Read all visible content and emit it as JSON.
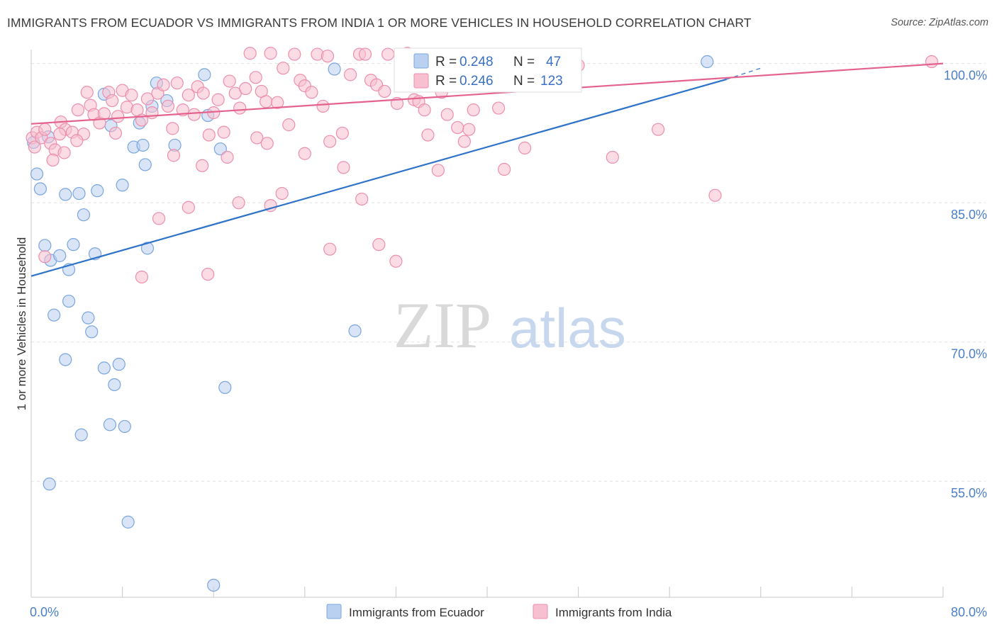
{
  "header": {
    "title": "IMMIGRANTS FROM ECUADOR VS IMMIGRANTS FROM INDIA 1 OR MORE VEHICLES IN HOUSEHOLD CORRELATION CHART",
    "source": "Source: ZipAtlas.com"
  },
  "watermark": {
    "zip": "ZIP",
    "atlas": "atlas"
  },
  "colors": {
    "ecuador_fill": "#b9d0f0",
    "ecuador_stroke": "#7aa5de",
    "ecuador_line": "#2f73c9",
    "india_fill": "#f7bfd0",
    "india_stroke": "#ec8fac",
    "india_line": "#e4638e",
    "axis_label": "#4a7fc8",
    "grid": "#e3e3e3"
  },
  "legend_box": {
    "r_label": "R =",
    "n_label": "N =",
    "rows": [
      {
        "r": "0.248",
        "n": "47"
      },
      {
        "r": "0.246",
        "n": "123"
      }
    ]
  },
  "chart_data": {
    "type": "scatter",
    "title": "IMMIGRANTS FROM ECUADOR VS IMMIGRANTS FROM INDIA 1 OR MORE VEHICLES IN HOUSEHOLD CORRELATION CHART",
    "xlabel": "",
    "ylabel": "1 or more Vehicles in Household",
    "xlim": [
      0,
      80
    ],
    "ylim": [
      42.5,
      101.5
    ],
    "x_tick_labels": [
      "0.0%",
      "80.0%"
    ],
    "y_ticks": [
      100,
      85,
      70,
      55
    ],
    "y_tick_labels": [
      "100.0%",
      "85.0%",
      "70.0%",
      "55.0%"
    ],
    "legend_position": "bottom-center",
    "series": [
      {
        "name": "Immigrants from Ecuador",
        "R": 0.248,
        "N": 47,
        "trend": {
          "x": [
            0,
            61
          ],
          "y": [
            77.1,
            98.3
          ],
          "dashed_to": {
            "x": 64,
            "y": 99.5
          }
        },
        "points": [
          [
            0.2,
            91.5
          ],
          [
            0.5,
            88.1
          ],
          [
            0.8,
            86.5
          ],
          [
            1.2,
            80.4
          ],
          [
            1.7,
            78.8
          ],
          [
            2.5,
            79.3
          ],
          [
            3.0,
            85.9
          ],
          [
            2.0,
            72.9
          ],
          [
            3.3,
            77.8
          ],
          [
            3.3,
            74.4
          ],
          [
            3.0,
            68.1
          ],
          [
            4.2,
            86.0
          ],
          [
            4.6,
            83.7
          ],
          [
            3.7,
            80.5
          ],
          [
            5.6,
            79.5
          ],
          [
            5.0,
            72.6
          ],
          [
            5.3,
            71.1
          ],
          [
            5.8,
            86.3
          ],
          [
            6.4,
            96.7
          ],
          [
            7.0,
            93.3
          ],
          [
            6.4,
            67.2
          ],
          [
            7.3,
            65.4
          ],
          [
            7.7,
            67.6
          ],
          [
            6.9,
            61.1
          ],
          [
            8.0,
            86.9
          ],
          [
            8.2,
            60.9
          ],
          [
            9.0,
            91.0
          ],
          [
            9.5,
            93.6
          ],
          [
            9.8,
            91.2
          ],
          [
            10.0,
            89.1
          ],
          [
            10.2,
            80.1
          ],
          [
            10.6,
            95.4
          ],
          [
            11.0,
            97.9
          ],
          [
            11.9,
            96.0
          ],
          [
            12.6,
            91.2
          ],
          [
            15.2,
            98.8
          ],
          [
            15.5,
            94.4
          ],
          [
            16.6,
            90.8
          ],
          [
            17.0,
            65.1
          ],
          [
            4.4,
            60.0
          ],
          [
            1.6,
            54.7
          ],
          [
            8.5,
            50.6
          ],
          [
            16.0,
            43.8
          ],
          [
            26.6,
            99.4
          ],
          [
            28.4,
            71.2
          ],
          [
            59.3,
            100.2
          ],
          [
            1.5,
            92.1
          ]
        ]
      },
      {
        "name": "Immigrants from India",
        "R": 0.246,
        "N": 123,
        "trend": {
          "x": [
            0,
            80
          ],
          "y": [
            93.5,
            100.0
          ]
        },
        "points": [
          [
            0.1,
            92.0
          ],
          [
            0.3,
            91.0
          ],
          [
            0.5,
            92.6
          ],
          [
            0.9,
            92.0
          ],
          [
            1.2,
            92.9
          ],
          [
            1.7,
            91.4
          ],
          [
            2.1,
            90.7
          ],
          [
            2.6,
            93.7
          ],
          [
            3.0,
            92.9
          ],
          [
            2.5,
            92.4
          ],
          [
            3.6,
            92.6
          ],
          [
            4.1,
            95.0
          ],
          [
            4.6,
            92.4
          ],
          [
            4.9,
            96.9
          ],
          [
            5.2,
            95.5
          ],
          [
            5.5,
            94.5
          ],
          [
            6.0,
            93.6
          ],
          [
            6.4,
            94.6
          ],
          [
            6.8,
            96.9
          ],
          [
            7.1,
            96.0
          ],
          [
            7.6,
            94.3
          ],
          [
            8.0,
            97.1
          ],
          [
            8.4,
            95.3
          ],
          [
            8.8,
            96.6
          ],
          [
            9.3,
            95.0
          ],
          [
            9.7,
            93.9
          ],
          [
            10.2,
            96.2
          ],
          [
            10.6,
            94.7
          ],
          [
            11.1,
            96.8
          ],
          [
            11.6,
            97.7
          ],
          [
            12.0,
            95.4
          ],
          [
            12.4,
            93.0
          ],
          [
            12.8,
            97.9
          ],
          [
            13.3,
            95.0
          ],
          [
            13.8,
            96.6
          ],
          [
            14.3,
            94.5
          ],
          [
            14.6,
            97.5
          ],
          [
            15.1,
            96.8
          ],
          [
            15.6,
            92.3
          ],
          [
            16.0,
            94.7
          ],
          [
            16.4,
            96.1
          ],
          [
            16.9,
            92.6
          ],
          [
            17.4,
            98.1
          ],
          [
            17.9,
            96.8
          ],
          [
            18.3,
            95.2
          ],
          [
            18.8,
            97.3
          ],
          [
            19.2,
            101.1
          ],
          [
            19.7,
            98.5
          ],
          [
            20.2,
            97.0
          ],
          [
            20.6,
            95.9
          ],
          [
            21.0,
            101.1
          ],
          [
            21.6,
            95.8
          ],
          [
            22.1,
            99.5
          ],
          [
            23.1,
            101.0
          ],
          [
            23.6,
            98.2
          ],
          [
            24.0,
            97.6
          ],
          [
            24.6,
            96.9
          ],
          [
            25.1,
            101.0
          ],
          [
            25.6,
            95.4
          ],
          [
            26.0,
            100.8
          ],
          [
            27.3,
            92.5
          ],
          [
            28.0,
            98.8
          ],
          [
            28.8,
            101.0
          ],
          [
            29.3,
            101.0
          ],
          [
            29.8,
            98.2
          ],
          [
            30.3,
            97.7
          ],
          [
            31.0,
            97.0
          ],
          [
            31.3,
            101.0
          ],
          [
            32.1,
            95.7
          ],
          [
            33.0,
            101.1
          ],
          [
            33.6,
            96.1
          ],
          [
            34.0,
            95.9
          ],
          [
            34.5,
            95.0
          ],
          [
            35.0,
            98.3
          ],
          [
            36.0,
            96.9
          ],
          [
            36.5,
            94.5
          ],
          [
            37.0,
            98.5
          ],
          [
            38.0,
            91.6
          ],
          [
            38.8,
            95.0
          ],
          [
            40.0,
            100.9
          ],
          [
            41.0,
            95.2
          ],
          [
            42.0,
            101.0
          ],
          [
            43.0,
            100.8
          ],
          [
            44.0,
            100.0
          ],
          [
            45.0,
            100.7
          ],
          [
            46.0,
            98.0
          ],
          [
            47.0,
            101.0
          ],
          [
            48.0,
            99.8
          ],
          [
            1.9,
            89.6
          ],
          [
            2.9,
            90.4
          ],
          [
            4.0,
            91.7
          ],
          [
            7.4,
            92.5
          ],
          [
            12.5,
            90.1
          ],
          [
            15.0,
            89.0
          ],
          [
            17.2,
            89.9
          ],
          [
            19.8,
            92.0
          ],
          [
            20.7,
            91.4
          ],
          [
            22.6,
            93.4
          ],
          [
            24.0,
            90.3
          ],
          [
            26.2,
            91.6
          ],
          [
            27.4,
            88.8
          ],
          [
            29.0,
            85.4
          ],
          [
            34.8,
            92.3
          ],
          [
            38.4,
            92.9
          ],
          [
            43.3,
            90.9
          ],
          [
            35.7,
            88.5
          ],
          [
            37.4,
            93.1
          ],
          [
            18.2,
            85.0
          ],
          [
            21.0,
            84.7
          ],
          [
            11.2,
            83.3
          ],
          [
            26.2,
            80.0
          ],
          [
            13.8,
            84.5
          ],
          [
            30.5,
            80.5
          ],
          [
            9.7,
            77.0
          ],
          [
            15.5,
            77.3
          ],
          [
            32.0,
            78.7
          ],
          [
            22.0,
            86.0
          ],
          [
            1.2,
            79.2
          ],
          [
            60.0,
            85.8
          ],
          [
            41.5,
            88.6
          ],
          [
            51.0,
            89.9
          ],
          [
            55.0,
            92.9
          ],
          [
            79.0,
            100.2
          ]
        ]
      }
    ]
  },
  "bottom_legend": {
    "items": [
      {
        "label": "Immigrants from Ecuador"
      },
      {
        "label": "Immigrants from India"
      }
    ]
  }
}
